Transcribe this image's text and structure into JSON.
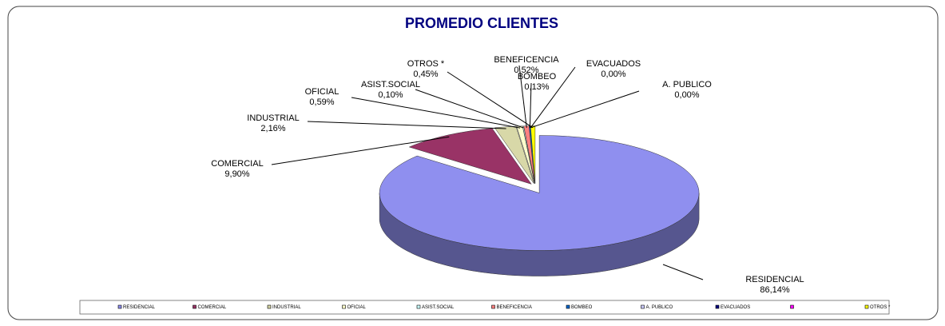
{
  "chart_data": {
    "type": "pie",
    "title": "PROMEDIO CLIENTES",
    "categories": [
      "RESIDENCIAL",
      "COMERCIAL",
      "INDUSTRIAL",
      "OFICIAL",
      "ASIST.SOCIAL",
      "BENEFICENCIA",
      "BOMBEO",
      "A.  PUBLICO",
      "EVACUADOS",
      null,
      "OTROS  *"
    ],
    "values": [
      86.14,
      9.9,
      2.16,
      0.59,
      0.1,
      0.52,
      0.13,
      0.0,
      0.0,
      null,
      0.45
    ],
    "value_labels": [
      "86,14%",
      "9,90%",
      "2,16%",
      "0,59%",
      "0,10%",
      "0,52%",
      "0,13%",
      "0,00%",
      "0,00%",
      null,
      "0,45%"
    ],
    "colors": [
      "#8f8fef",
      "#993366",
      "#d8d8a8",
      "#ffffcc",
      "#ccffff",
      "#ff8080",
      "#0066cc",
      "#ccccff",
      "#000080",
      "#ff00ff",
      "#ffff00"
    ],
    "legend": "bottom"
  }
}
